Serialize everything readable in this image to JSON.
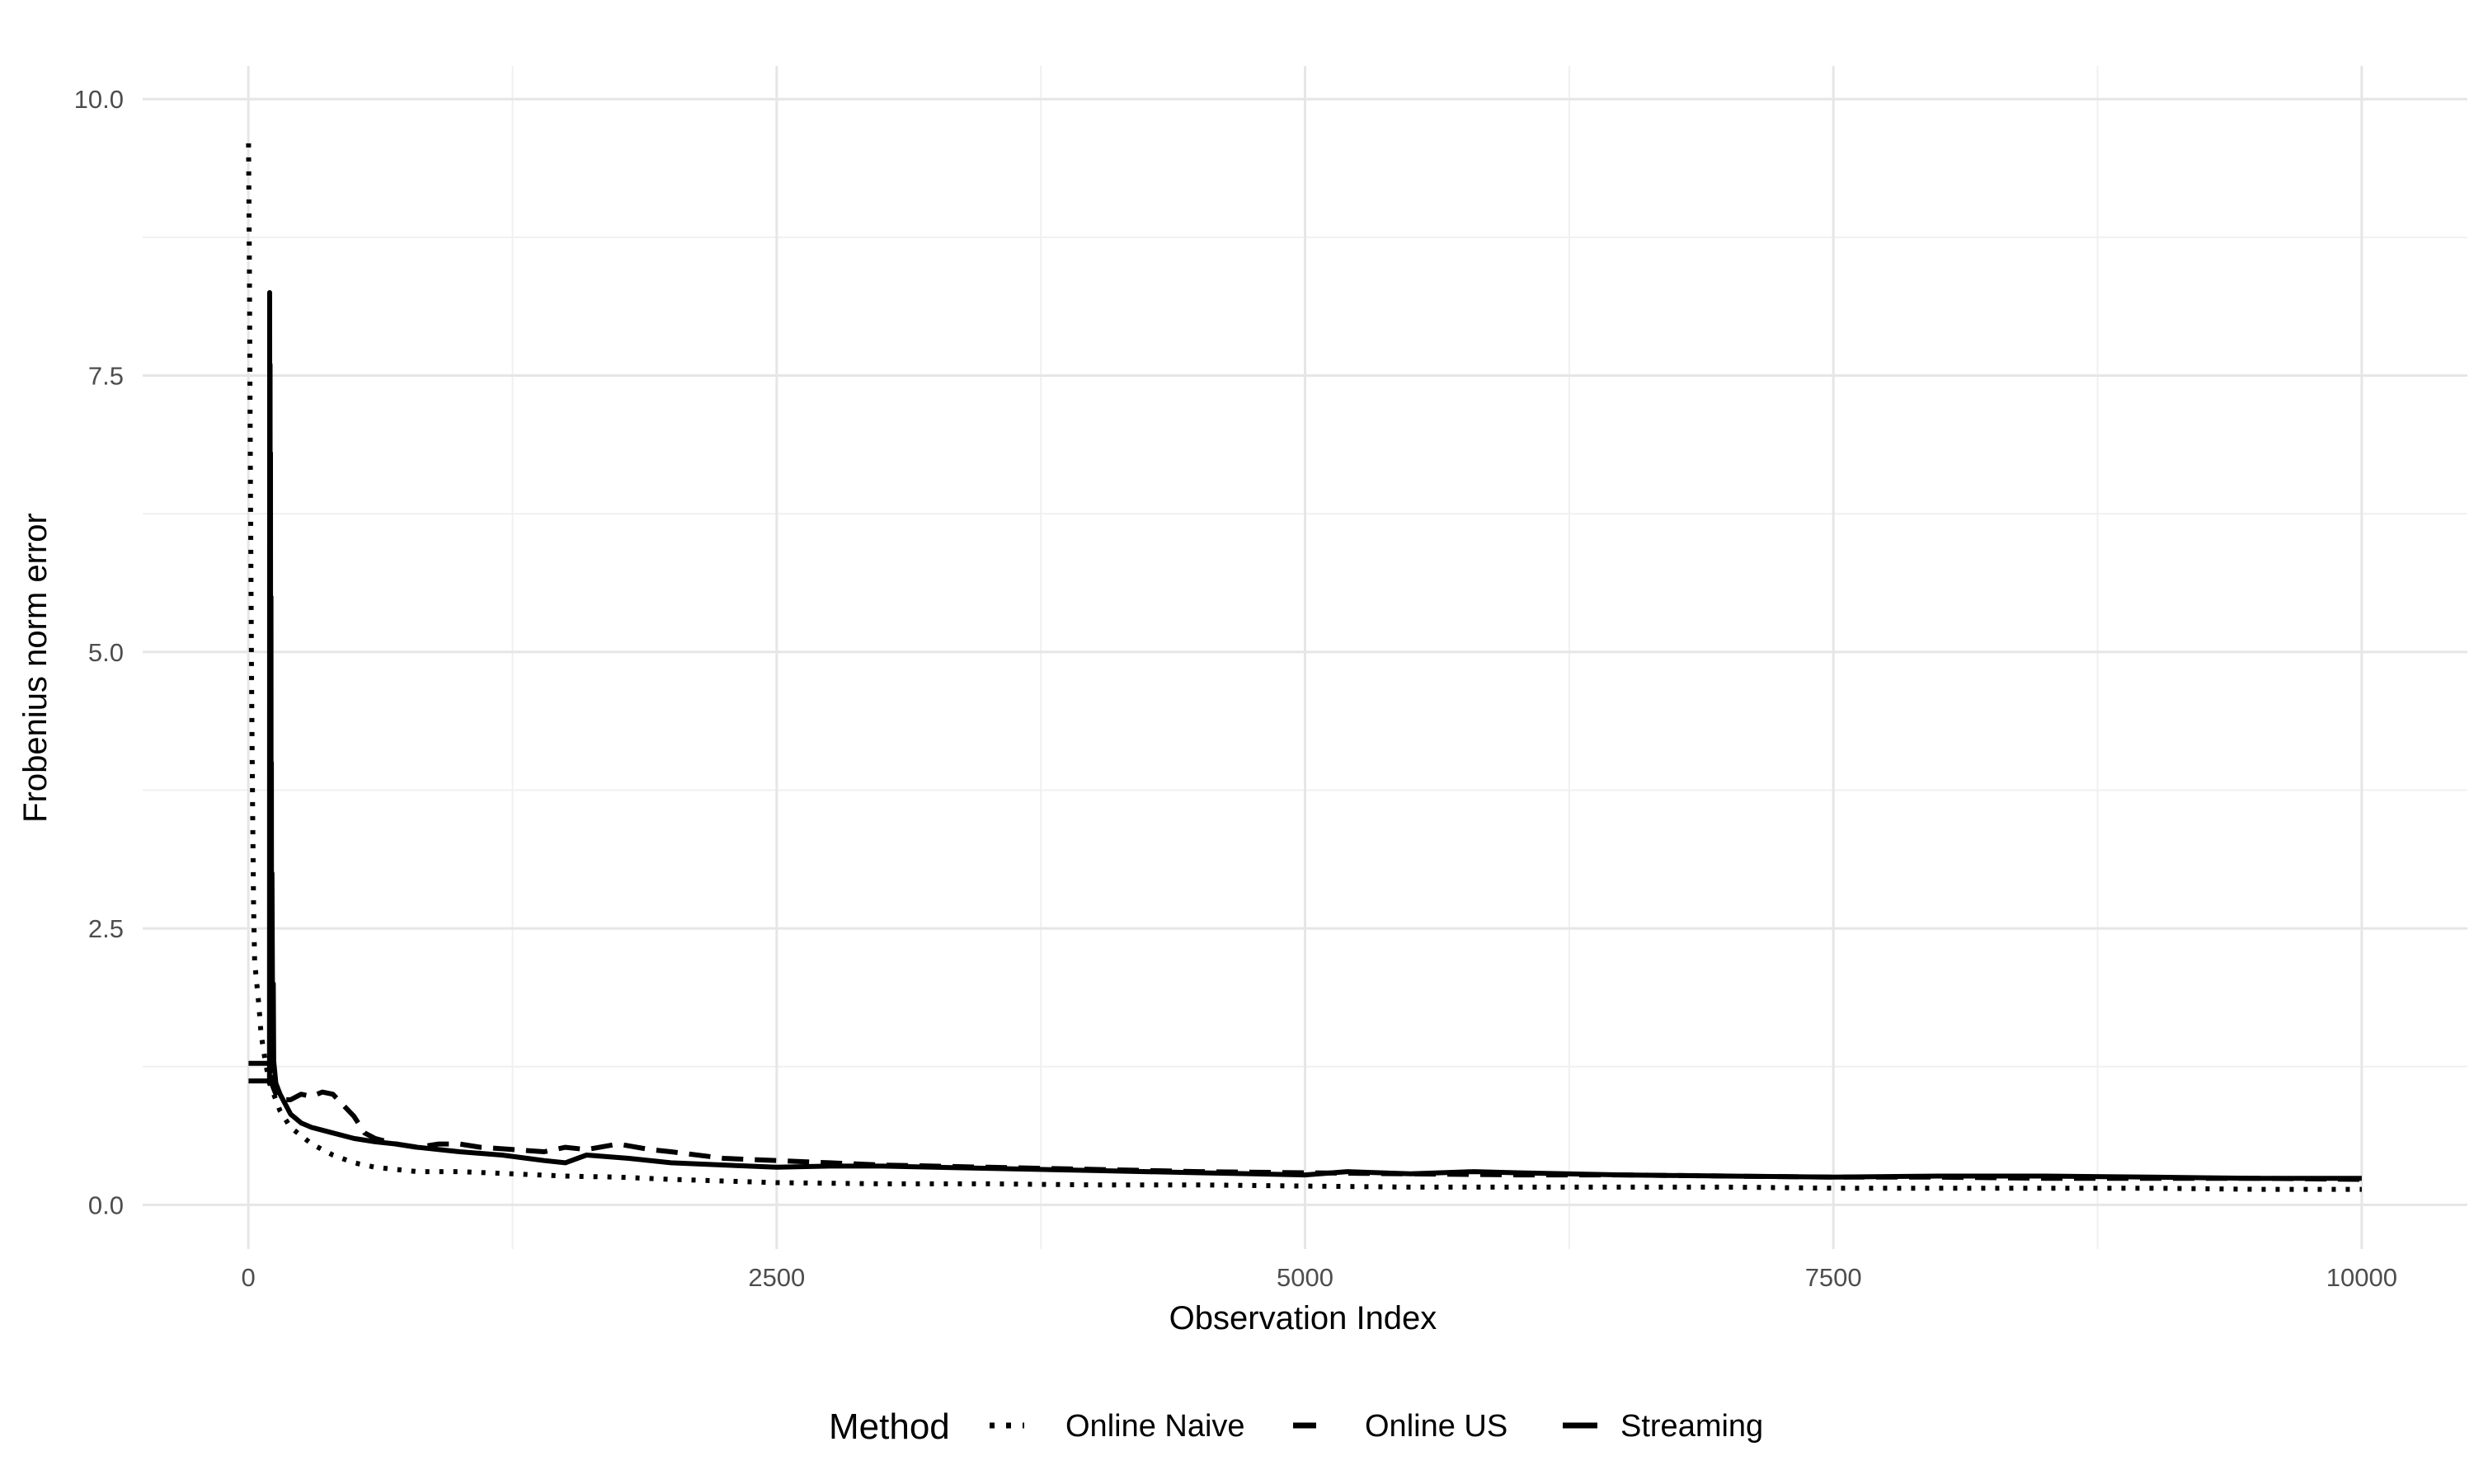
{
  "chart_data": {
    "type": "line",
    "title": "",
    "xlabel": "Observation Index",
    "ylabel": "Frobenius norm error",
    "xlim": [
      -500,
      10500
    ],
    "ylim": [
      -0.4,
      10.3
    ],
    "x_ticks": [
      0,
      2500,
      5000,
      7500,
      10000
    ],
    "x_tick_labels": [
      "0",
      "2500",
      "5000",
      "7500",
      "10000"
    ],
    "y_ticks": [
      0,
      2.5,
      5,
      7.5,
      10
    ],
    "y_tick_labels": [
      "0.0",
      "2.5",
      "5.0",
      "7.5",
      "10.0"
    ],
    "grid": true,
    "legend": {
      "title": "Method",
      "position": "bottom"
    },
    "series": [
      {
        "name": "Online Naive",
        "linestyle": "dotted",
        "color": "#000000",
        "x": [
          1,
          5,
          10,
          15,
          20,
          25,
          30,
          40,
          50,
          60,
          80,
          100,
          150,
          200,
          300,
          400,
          500,
          600,
          800,
          1000,
          1250,
          1500,
          1750,
          2000,
          2500,
          3000,
          3500,
          4000,
          4500,
          5000,
          5500,
          6000,
          6500,
          7000,
          7500,
          8000,
          8500,
          9000,
          9500,
          10000
        ],
        "y": [
          9.6,
          8.5,
          6.5,
          4.8,
          3.6,
          2.7,
          2.2,
          2.0,
          1.8,
          1.55,
          1.3,
          1.1,
          0.85,
          0.7,
          0.55,
          0.45,
          0.38,
          0.34,
          0.3,
          0.3,
          0.28,
          0.26,
          0.25,
          0.23,
          0.2,
          0.19,
          0.19,
          0.18,
          0.18,
          0.17,
          0.16,
          0.16,
          0.16,
          0.16,
          0.15,
          0.15,
          0.15,
          0.15,
          0.14,
          0.14
        ]
      },
      {
        "name": "Online US",
        "linestyle": "dashed",
        "color": "#000000",
        "x": [
          1,
          30,
          60,
          100,
          110,
          120,
          130,
          150,
          200,
          250,
          300,
          350,
          400,
          450,
          500,
          550,
          600,
          700,
          800,
          900,
          1000,
          1100,
          1250,
          1400,
          1500,
          1600,
          1750,
          1900,
          2000,
          2250,
          2500,
          2750,
          3000,
          3500,
          4000,
          4500,
          5000,
          5500,
          6000,
          6500,
          7000,
          7500,
          8000,
          8500,
          9000,
          9500,
          10000
        ],
        "y": [
          1.28,
          1.28,
          1.28,
          1.28,
          1.1,
          1.05,
          1.0,
          0.95,
          0.95,
          1.0,
          0.98,
          1.02,
          1.0,
          0.9,
          0.8,
          0.65,
          0.6,
          0.55,
          0.52,
          0.55,
          0.55,
          0.52,
          0.5,
          0.48,
          0.52,
          0.5,
          0.55,
          0.5,
          0.48,
          0.42,
          0.4,
          0.38,
          0.36,
          0.34,
          0.32,
          0.3,
          0.29,
          0.28,
          0.27,
          0.27,
          0.26,
          0.25,
          0.25,
          0.24,
          0.24,
          0.24,
          0.23
        ]
      },
      {
        "name": "Streaming",
        "linestyle": "solid",
        "color": "#000000",
        "x": [
          1,
          50,
          100,
          101,
          102,
          103,
          104,
          105,
          106,
          107,
          108,
          109,
          110,
          112,
          115,
          118,
          120,
          130,
          150,
          200,
          250,
          300,
          400,
          500,
          600,
          700,
          800,
          1000,
          1200,
          1400,
          1500,
          1600,
          1800,
          2000,
          2250,
          2500,
          2750,
          3000,
          3500,
          4000,
          4500,
          5000,
          5200,
          5500,
          5800,
          6000,
          6500,
          7000,
          7500,
          8000,
          8500,
          9000,
          9500,
          10000
        ],
        "y": [
          1.12,
          1.12,
          1.12,
          8.25,
          1.2,
          7.6,
          1.3,
          6.8,
          1.5,
          5.5,
          1.4,
          4.0,
          1.3,
          3.0,
          1.6,
          2.0,
          1.3,
          1.1,
          1.0,
          0.82,
          0.74,
          0.7,
          0.65,
          0.6,
          0.57,
          0.55,
          0.52,
          0.48,
          0.45,
          0.4,
          0.38,
          0.45,
          0.42,
          0.38,
          0.36,
          0.34,
          0.35,
          0.35,
          0.33,
          0.31,
          0.29,
          0.27,
          0.3,
          0.28,
          0.3,
          0.29,
          0.27,
          0.26,
          0.25,
          0.26,
          0.26,
          0.25,
          0.24,
          0.24
        ]
      }
    ]
  }
}
